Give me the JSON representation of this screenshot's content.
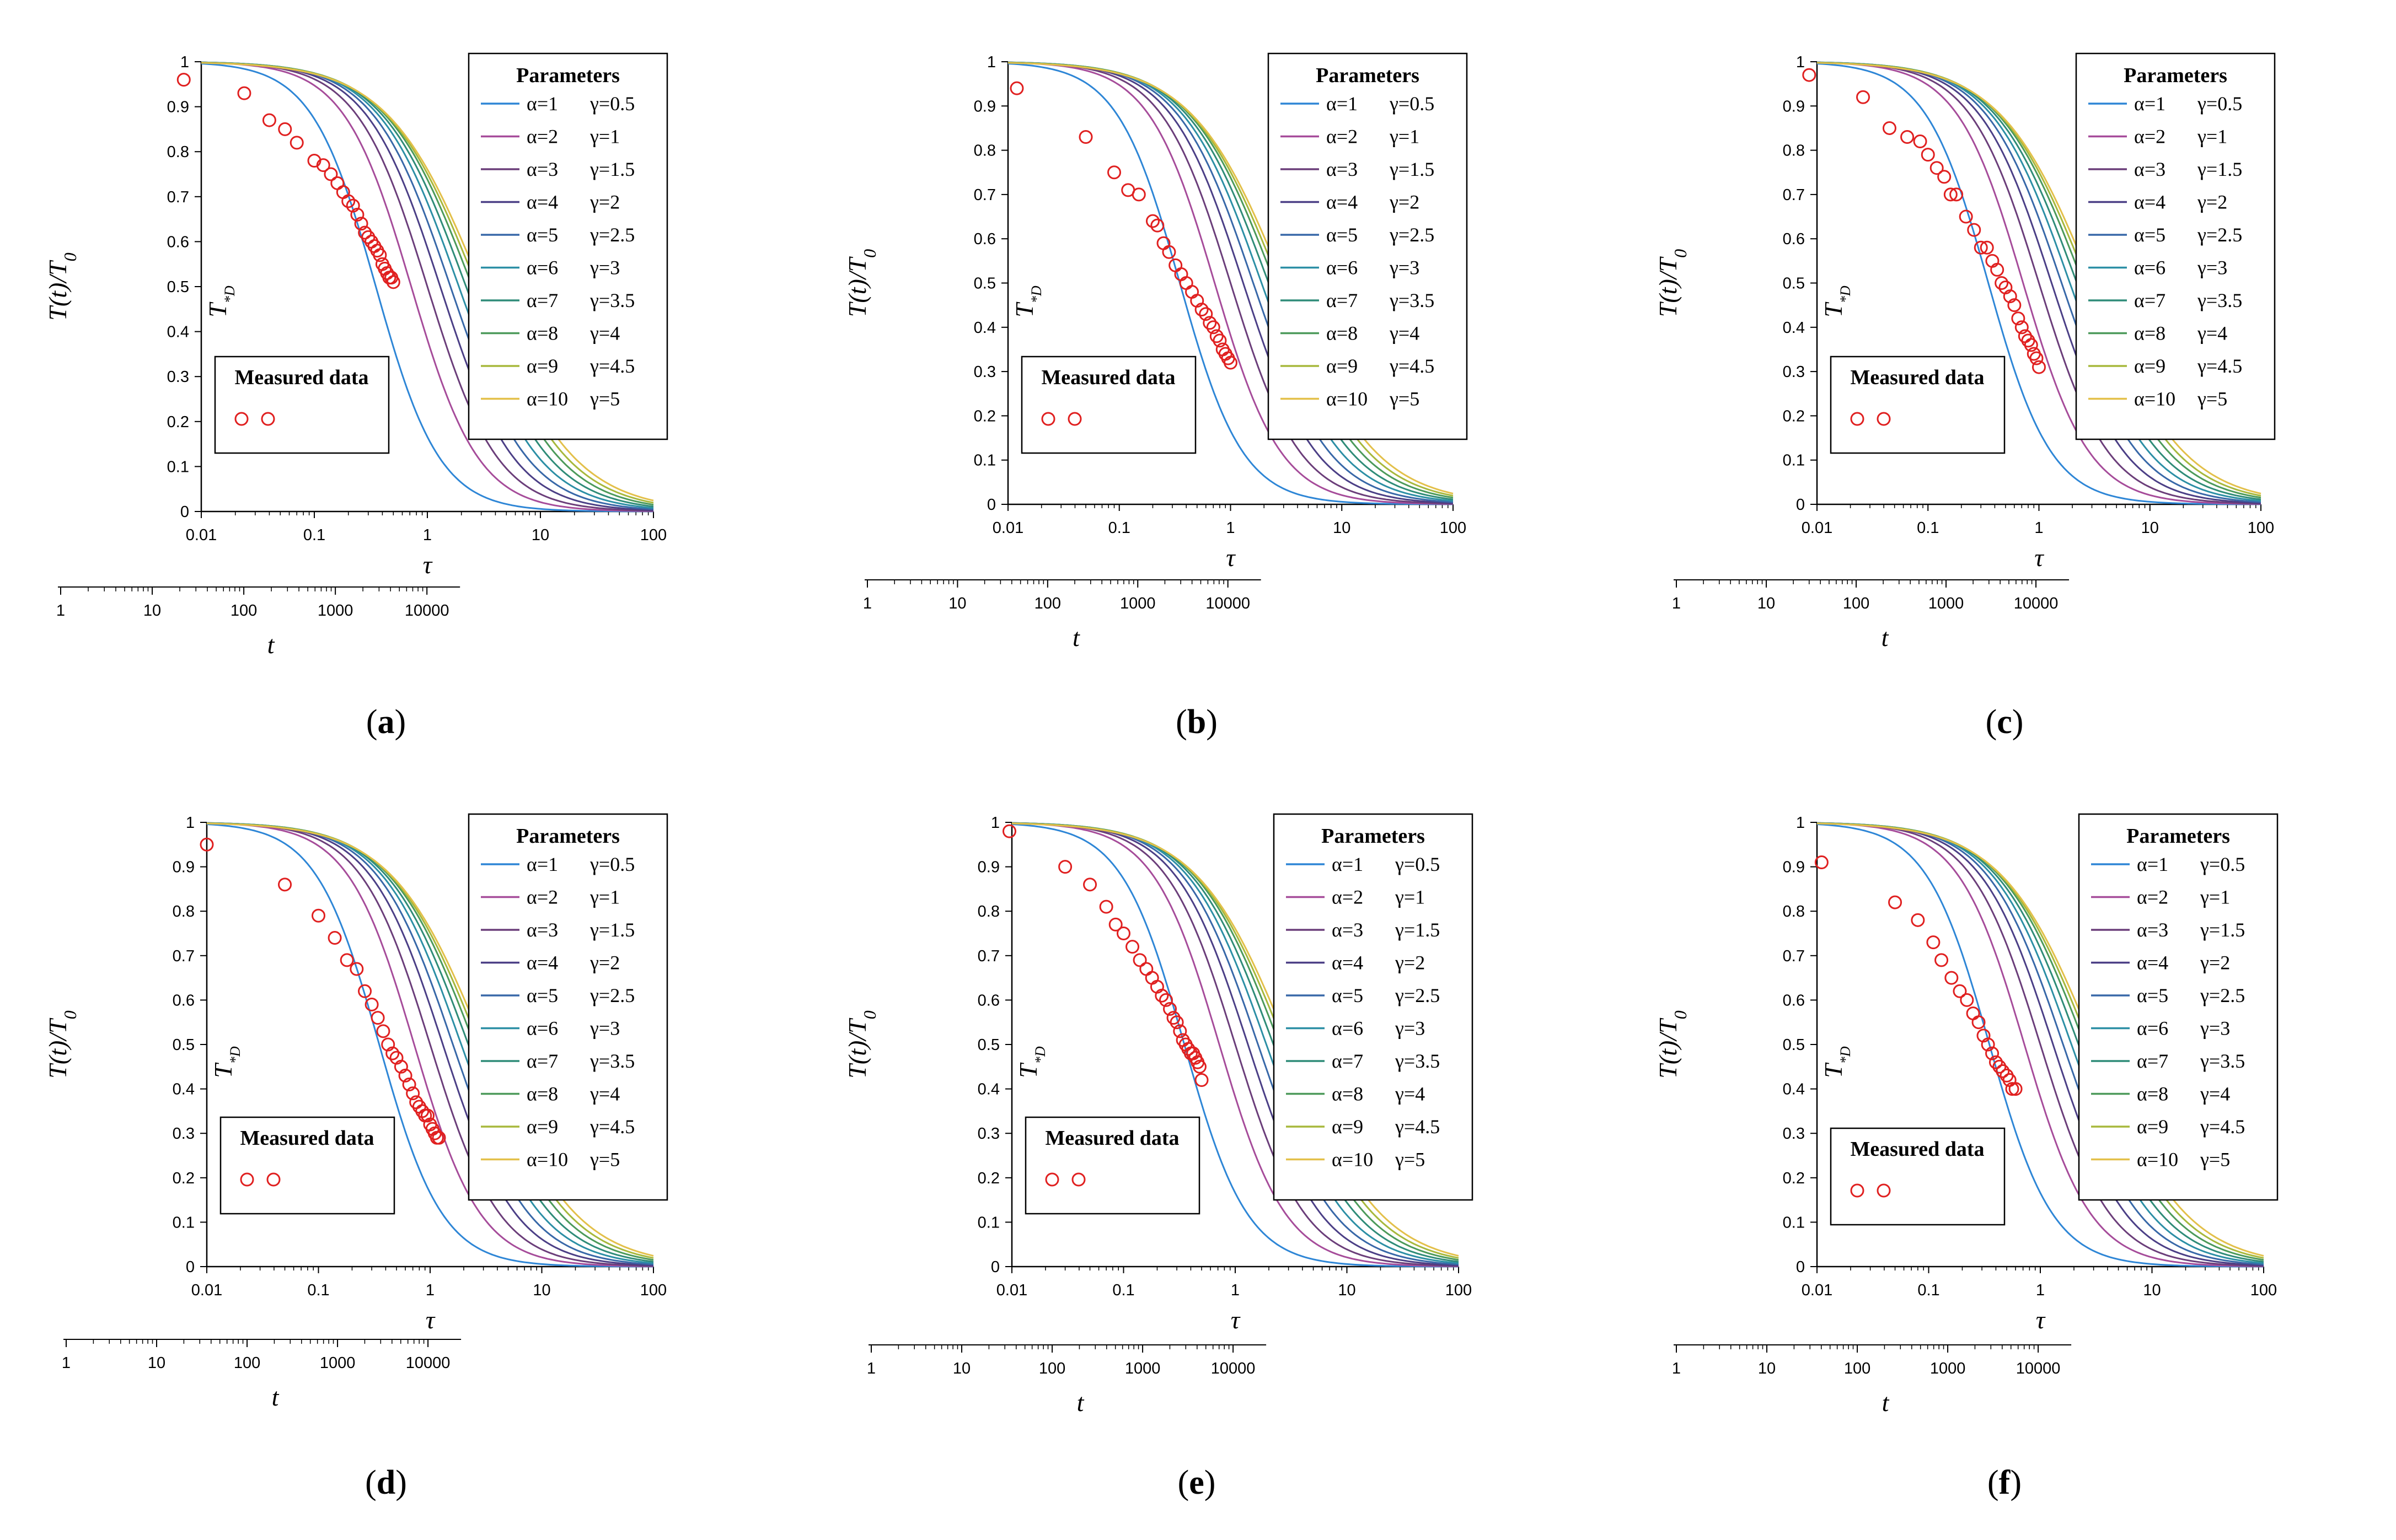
{
  "chart_data": [
    {
      "type": "line",
      "caption": "(a)",
      "ylabel": "T(t)/T",
      "ylabel_sub": "0",
      "ylabel_inner": "T",
      "ylabel_inner_sub": "*D",
      "xlabel": "τ",
      "x2label": "t",
      "xlim": [
        0.01,
        100
      ],
      "ylim": [
        0,
        1
      ],
      "x_ticks": [
        "0.01",
        "0.1",
        "1",
        "10",
        "100"
      ],
      "y_ticks": [
        "0",
        "0.1",
        "0.2",
        "0.3",
        "0.4",
        "0.5",
        "0.6",
        "0.7",
        "0.8",
        "0.9",
        "1"
      ],
      "t_ticks": [
        "1",
        "10",
        "100",
        "1000",
        "10000"
      ],
      "legend_title": "Parameters",
      "series_labels": [
        {
          "alpha": "α=1",
          "gamma": "γ=0.5"
        },
        {
          "alpha": "α=2",
          "gamma": "γ=1"
        },
        {
          "alpha": "α=3",
          "gamma": "γ=1.5"
        },
        {
          "alpha": "α=4",
          "gamma": "γ=2"
        },
        {
          "alpha": "α=5",
          "gamma": "γ=2.5"
        },
        {
          "alpha": "α=6",
          "gamma": "γ=3"
        },
        {
          "alpha": "α=7",
          "gamma": "γ=3.5"
        },
        {
          "alpha": "α=8",
          "gamma": "γ=4"
        },
        {
          "alpha": "α=9",
          "gamma": "γ=4.5"
        },
        {
          "alpha": "α=10",
          "gamma": "γ=5"
        }
      ],
      "midpoints": [
        0.35,
        0.72,
        1.0,
        1.3,
        1.6,
        1.9,
        2.2,
        2.5,
        2.75,
        3.0
      ],
      "measured_label": "Measured data",
      "measured": [
        [
          0.007,
          0.96
        ],
        [
          0.024,
          0.93
        ],
        [
          0.04,
          0.87
        ],
        [
          0.055,
          0.85
        ],
        [
          0.07,
          0.82
        ],
        [
          0.1,
          0.78
        ],
        [
          0.12,
          0.77
        ],
        [
          0.14,
          0.75
        ],
        [
          0.16,
          0.73
        ],
        [
          0.18,
          0.71
        ],
        [
          0.2,
          0.69
        ],
        [
          0.22,
          0.68
        ],
        [
          0.24,
          0.66
        ],
        [
          0.26,
          0.64
        ],
        [
          0.28,
          0.62
        ],
        [
          0.3,
          0.61
        ],
        [
          0.32,
          0.6
        ],
        [
          0.34,
          0.59
        ],
        [
          0.36,
          0.58
        ],
        [
          0.38,
          0.57
        ],
        [
          0.4,
          0.55
        ],
        [
          0.42,
          0.54
        ],
        [
          0.44,
          0.53
        ],
        [
          0.46,
          0.52
        ],
        [
          0.48,
          0.52
        ],
        [
          0.5,
          0.51
        ]
      ]
    },
    {
      "type": "line",
      "caption": "(b)",
      "ylabel": "T(t)/T",
      "ylabel_sub": "0",
      "ylabel_inner": "T",
      "ylabel_inner_sub": "*D",
      "xlabel": "τ",
      "x2label": "t",
      "xlim": [
        0.01,
        100
      ],
      "ylim": [
        0,
        1
      ],
      "x_ticks": [
        "0.01",
        "0.1",
        "1",
        "10",
        "100"
      ],
      "y_ticks": [
        "0",
        "0.1",
        "0.2",
        "0.3",
        "0.4",
        "0.5",
        "0.6",
        "0.7",
        "0.8",
        "0.9",
        "1"
      ],
      "t_ticks": [
        "1",
        "10",
        "100",
        "1000",
        "10000"
      ],
      "legend_title": "Parameters",
      "series_labels": [
        {
          "alpha": "α=1",
          "gamma": "γ=0.5"
        },
        {
          "alpha": "α=2",
          "gamma": "γ=1"
        },
        {
          "alpha": "α=3",
          "gamma": "γ=1.5"
        },
        {
          "alpha": "α=4",
          "gamma": "γ=2"
        },
        {
          "alpha": "α=5",
          "gamma": "γ=2.5"
        },
        {
          "alpha": "α=6",
          "gamma": "γ=3"
        },
        {
          "alpha": "α=7",
          "gamma": "γ=3.5"
        },
        {
          "alpha": "α=8",
          "gamma": "γ=4"
        },
        {
          "alpha": "α=9",
          "gamma": "γ=4.5"
        },
        {
          "alpha": "α=10",
          "gamma": "γ=5"
        }
      ],
      "midpoints": [
        0.35,
        0.72,
        1.0,
        1.3,
        1.6,
        1.9,
        2.2,
        2.5,
        2.75,
        3.0
      ],
      "measured_label": "Measured data",
      "measured": [
        [
          0.012,
          0.94
        ],
        [
          0.05,
          0.83
        ],
        [
          0.09,
          0.75
        ],
        [
          0.12,
          0.71
        ],
        [
          0.15,
          0.7
        ],
        [
          0.2,
          0.64
        ],
        [
          0.22,
          0.63
        ],
        [
          0.25,
          0.59
        ],
        [
          0.28,
          0.57
        ],
        [
          0.32,
          0.54
        ],
        [
          0.36,
          0.52
        ],
        [
          0.4,
          0.5
        ],
        [
          0.45,
          0.48
        ],
        [
          0.5,
          0.46
        ],
        [
          0.55,
          0.44
        ],
        [
          0.6,
          0.43
        ],
        [
          0.65,
          0.41
        ],
        [
          0.7,
          0.4
        ],
        [
          0.75,
          0.38
        ],
        [
          0.8,
          0.37
        ],
        [
          0.85,
          0.35
        ],
        [
          0.9,
          0.34
        ],
        [
          0.95,
          0.33
        ],
        [
          1.0,
          0.32
        ]
      ]
    },
    {
      "type": "line",
      "caption": "(c)",
      "ylabel": "T(t)/T",
      "ylabel_sub": "0",
      "ylabel_inner": "T",
      "ylabel_inner_sub": "*D",
      "xlabel": "τ",
      "x2label": "t",
      "xlim": [
        0.01,
        100
      ],
      "ylim": [
        0,
        1
      ],
      "x_ticks": [
        "0.01",
        "0.1",
        "1",
        "10",
        "100"
      ],
      "y_ticks": [
        "0",
        "0.1",
        "0.2",
        "0.3",
        "0.4",
        "0.5",
        "0.6",
        "0.7",
        "0.8",
        "0.9",
        "1"
      ],
      "t_ticks": [
        "1",
        "10",
        "100",
        "1000",
        "10000"
      ],
      "legend_title": "Parameters",
      "series_labels": [
        {
          "alpha": "α=1",
          "gamma": "γ=0.5"
        },
        {
          "alpha": "α=2",
          "gamma": "γ=1"
        },
        {
          "alpha": "α=3",
          "gamma": "γ=1.5"
        },
        {
          "alpha": "α=4",
          "gamma": "γ=2"
        },
        {
          "alpha": "α=5",
          "gamma": "γ=2.5"
        },
        {
          "alpha": "α=6",
          "gamma": "γ=3"
        },
        {
          "alpha": "α=7",
          "gamma": "γ=3.5"
        },
        {
          "alpha": "α=8",
          "gamma": "γ=4"
        },
        {
          "alpha": "α=9",
          "gamma": "γ=4.5"
        },
        {
          "alpha": "α=10",
          "gamma": "γ=5"
        }
      ],
      "midpoints": [
        0.35,
        0.72,
        1.0,
        1.3,
        1.6,
        1.9,
        2.2,
        2.5,
        2.75,
        3.0
      ],
      "measured_label": "Measured data",
      "measured": [
        [
          0.0085,
          0.97
        ],
        [
          0.026,
          0.92
        ],
        [
          0.045,
          0.85
        ],
        [
          0.065,
          0.83
        ],
        [
          0.085,
          0.82
        ],
        [
          0.1,
          0.79
        ],
        [
          0.12,
          0.76
        ],
        [
          0.14,
          0.74
        ],
        [
          0.16,
          0.7
        ],
        [
          0.18,
          0.7
        ],
        [
          0.22,
          0.65
        ],
        [
          0.26,
          0.62
        ],
        [
          0.3,
          0.58
        ],
        [
          0.34,
          0.58
        ],
        [
          0.38,
          0.55
        ],
        [
          0.42,
          0.53
        ],
        [
          0.46,
          0.5
        ],
        [
          0.5,
          0.49
        ],
        [
          0.55,
          0.47
        ],
        [
          0.6,
          0.45
        ],
        [
          0.65,
          0.42
        ],
        [
          0.7,
          0.4
        ],
        [
          0.75,
          0.38
        ],
        [
          0.8,
          0.37
        ],
        [
          0.85,
          0.36
        ],
        [
          0.9,
          0.34
        ],
        [
          0.95,
          0.33
        ],
        [
          1.0,
          0.31
        ]
      ]
    },
    {
      "type": "line",
      "caption": "(d)",
      "ylabel": "T(t)/T",
      "ylabel_sub": "0",
      "ylabel_inner": "T",
      "ylabel_inner_sub": "*D",
      "xlabel": "τ",
      "x2label": "t",
      "xlim": [
        0.01,
        100
      ],
      "ylim": [
        0,
        1
      ],
      "x_ticks": [
        "0.01",
        "0.1",
        "1",
        "10",
        "100"
      ],
      "y_ticks": [
        "0",
        "0.1",
        "0.2",
        "0.3",
        "0.4",
        "0.5",
        "0.6",
        "0.7",
        "0.8",
        "0.9",
        "1"
      ],
      "t_ticks": [
        "1",
        "10",
        "100",
        "1000",
        "10000"
      ],
      "legend_title": "Parameters",
      "series_labels": [
        {
          "alpha": "α=1",
          "gamma": "γ=0.5"
        },
        {
          "alpha": "α=2",
          "gamma": "γ=1"
        },
        {
          "alpha": "α=3",
          "gamma": "γ=1.5"
        },
        {
          "alpha": "α=4",
          "gamma": "γ=2"
        },
        {
          "alpha": "α=5",
          "gamma": "γ=2.5"
        },
        {
          "alpha": "α=6",
          "gamma": "γ=3"
        },
        {
          "alpha": "α=7",
          "gamma": "γ=3.5"
        },
        {
          "alpha": "α=8",
          "gamma": "γ=4"
        },
        {
          "alpha": "α=9",
          "gamma": "γ=4.5"
        },
        {
          "alpha": "α=10",
          "gamma": "γ=5"
        }
      ],
      "midpoints": [
        0.35,
        0.72,
        1.0,
        1.3,
        1.6,
        1.9,
        2.2,
        2.5,
        2.75,
        3.0
      ],
      "measured_label": "Measured data",
      "measured": [
        [
          0.01,
          0.95
        ],
        [
          0.05,
          0.86
        ],
        [
          0.1,
          0.79
        ],
        [
          0.14,
          0.74
        ],
        [
          0.18,
          0.69
        ],
        [
          0.22,
          0.67
        ],
        [
          0.26,
          0.62
        ],
        [
          0.3,
          0.59
        ],
        [
          0.34,
          0.56
        ],
        [
          0.38,
          0.53
        ],
        [
          0.42,
          0.5
        ],
        [
          0.46,
          0.48
        ],
        [
          0.5,
          0.47
        ],
        [
          0.55,
          0.45
        ],
        [
          0.6,
          0.43
        ],
        [
          0.65,
          0.41
        ],
        [
          0.7,
          0.39
        ],
        [
          0.75,
          0.37
        ],
        [
          0.8,
          0.36
        ],
        [
          0.85,
          0.35
        ],
        [
          0.9,
          0.34
        ],
        [
          0.95,
          0.34
        ],
        [
          1.0,
          0.32
        ],
        [
          1.05,
          0.31
        ],
        [
          1.1,
          0.3
        ],
        [
          1.15,
          0.29
        ],
        [
          1.2,
          0.29
        ]
      ]
    },
    {
      "type": "line",
      "caption": "(e)",
      "ylabel": "T(t)/T",
      "ylabel_sub": "0",
      "ylabel_inner": "T",
      "ylabel_inner_sub": "*D",
      "xlabel": "τ",
      "x2label": "t",
      "xlim": [
        0.01,
        100
      ],
      "ylim": [
        0,
        1
      ],
      "x_ticks": [
        "0.01",
        "0.1",
        "1",
        "10",
        "100"
      ],
      "y_ticks": [
        "0",
        "0.1",
        "0.2",
        "0.3",
        "0.4",
        "0.5",
        "0.6",
        "0.7",
        "0.8",
        "0.9",
        "1"
      ],
      "t_ticks": [
        "1",
        "10",
        "100",
        "1000",
        "10000"
      ],
      "legend_title": "Parameters",
      "series_labels": [
        {
          "alpha": "α=1",
          "gamma": "γ=0.5"
        },
        {
          "alpha": "α=2",
          "gamma": "γ=1"
        },
        {
          "alpha": "α=3",
          "gamma": "γ=1.5"
        },
        {
          "alpha": "α=4",
          "gamma": "γ=2"
        },
        {
          "alpha": "α=5",
          "gamma": "γ=2.5"
        },
        {
          "alpha": "α=6",
          "gamma": "γ=3"
        },
        {
          "alpha": "α=7",
          "gamma": "γ=3.5"
        },
        {
          "alpha": "α=8",
          "gamma": "γ=4"
        },
        {
          "alpha": "α=9",
          "gamma": "γ=4.5"
        },
        {
          "alpha": "α=10",
          "gamma": "γ=5"
        }
      ],
      "midpoints": [
        0.35,
        0.72,
        1.0,
        1.3,
        1.6,
        1.9,
        2.2,
        2.5,
        2.75,
        3.0
      ],
      "measured_label": "Measured data",
      "measured": [
        [
          0.0095,
          0.98
        ],
        [
          0.03,
          0.9
        ],
        [
          0.05,
          0.86
        ],
        [
          0.07,
          0.81
        ],
        [
          0.085,
          0.77
        ],
        [
          0.1,
          0.75
        ],
        [
          0.12,
          0.72
        ],
        [
          0.14,
          0.69
        ],
        [
          0.16,
          0.67
        ],
        [
          0.18,
          0.65
        ],
        [
          0.2,
          0.63
        ],
        [
          0.22,
          0.61
        ],
        [
          0.24,
          0.6
        ],
        [
          0.26,
          0.58
        ],
        [
          0.28,
          0.56
        ],
        [
          0.3,
          0.55
        ],
        [
          0.32,
          0.53
        ],
        [
          0.34,
          0.51
        ],
        [
          0.36,
          0.5
        ],
        [
          0.38,
          0.49
        ],
        [
          0.4,
          0.48
        ],
        [
          0.42,
          0.48
        ],
        [
          0.44,
          0.47
        ],
        [
          0.46,
          0.46
        ],
        [
          0.48,
          0.45
        ],
        [
          0.5,
          0.42
        ]
      ]
    },
    {
      "type": "line",
      "caption": "(f)",
      "ylabel": "T(t)/T",
      "ylabel_sub": "0",
      "ylabel_inner": "T",
      "ylabel_inner_sub": "*D",
      "xlabel": "τ",
      "x2label": "t",
      "xlim": [
        0.01,
        100
      ],
      "ylim": [
        0,
        1
      ],
      "x_ticks": [
        "0.01",
        "0.1",
        "1",
        "10",
        "100"
      ],
      "y_ticks": [
        "0",
        "0.1",
        "0.2",
        "0.3",
        "0.4",
        "0.5",
        "0.6",
        "0.7",
        "0.8",
        "0.9",
        "1"
      ],
      "t_ticks": [
        "1",
        "10",
        "100",
        "1000",
        "10000"
      ],
      "legend_title": "Parameters",
      "series_labels": [
        {
          "alpha": "α=1",
          "gamma": "γ=0.5"
        },
        {
          "alpha": "α=2",
          "gamma": "γ=1"
        },
        {
          "alpha": "α=3",
          "gamma": "γ=1.5"
        },
        {
          "alpha": "α=4",
          "gamma": "γ=2"
        },
        {
          "alpha": "α=5",
          "gamma": "γ=2.5"
        },
        {
          "alpha": "α=6",
          "gamma": "γ=3"
        },
        {
          "alpha": "α=7",
          "gamma": "γ=3.5"
        },
        {
          "alpha": "α=8",
          "gamma": "γ=4"
        },
        {
          "alpha": "α=9",
          "gamma": "γ=4.5"
        },
        {
          "alpha": "α=10",
          "gamma": "γ=5"
        }
      ],
      "midpoints": [
        0.35,
        0.72,
        1.0,
        1.3,
        1.6,
        1.9,
        2.2,
        2.5,
        2.75,
        3.0
      ],
      "measured_label": "Measured data",
      "measured": [
        [
          0.011,
          0.91
        ],
        [
          0.05,
          0.82
        ],
        [
          0.08,
          0.78
        ],
        [
          0.11,
          0.73
        ],
        [
          0.13,
          0.69
        ],
        [
          0.16,
          0.65
        ],
        [
          0.19,
          0.62
        ],
        [
          0.22,
          0.6
        ],
        [
          0.25,
          0.57
        ],
        [
          0.28,
          0.55
        ],
        [
          0.31,
          0.52
        ],
        [
          0.34,
          0.5
        ],
        [
          0.37,
          0.48
        ],
        [
          0.4,
          0.46
        ],
        [
          0.43,
          0.45
        ],
        [
          0.46,
          0.44
        ],
        [
          0.5,
          0.43
        ],
        [
          0.53,
          0.42
        ],
        [
          0.56,
          0.4
        ],
        [
          0.6,
          0.4
        ]
      ]
    }
  ],
  "series_colors": [
    "#2E86D6",
    "#A64C9A",
    "#6B3E7A",
    "#4B3F86",
    "#3868A8",
    "#2C8FA5",
    "#2F8C78",
    "#4C9A5A",
    "#A7B83C",
    "#E3C04A"
  ],
  "marker_color": "#E02020"
}
